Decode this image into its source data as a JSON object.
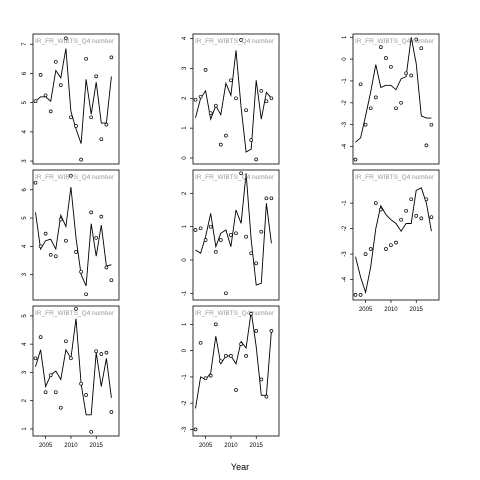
{
  "figure": {
    "xlabel": "Year"
  },
  "chart_data": [
    {
      "type": "line",
      "panel_label": "IR_FR_WIBTS_Q4:number",
      "xlim": [
        2002.5,
        2019.5
      ],
      "ylim": [
        2.9,
        7.35
      ],
      "xticks": [
        2005,
        2010,
        2015
      ],
      "yticks": [
        3,
        4,
        5,
        6,
        7
      ],
      "show_xticks": false,
      "series": [
        {
          "kind": "line",
          "x": [
            2003,
            2004,
            2005,
            2006,
            2007,
            2008,
            2009,
            2010,
            2011,
            2012,
            2013,
            2014,
            2015,
            2016,
            2017,
            2018
          ],
          "y": [
            5.05,
            5.2,
            5.2,
            5.05,
            6.1,
            5.85,
            6.85,
            4.7,
            4.1,
            3.6,
            5.8,
            4.6,
            5.7,
            4.3,
            4.3,
            5.9
          ]
        },
        {
          "kind": "scatter",
          "x": [
            2003,
            2004,
            2005,
            2006,
            2007,
            2008,
            2009,
            2010,
            2011,
            2012,
            2013,
            2014,
            2015,
            2016,
            2017,
            2018
          ],
          "y": [
            5.05,
            5.95,
            5.25,
            4.7,
            6.4,
            5.6,
            7.2,
            4.5,
            4.2,
            3.05,
            6.5,
            4.5,
            5.9,
            3.75,
            4.25,
            6.55
          ]
        }
      ]
    },
    {
      "type": "line",
      "panel_label": "IR_FR_WIBTS_Q4:number",
      "xlim": [
        2002.5,
        2019.5
      ],
      "ylim": [
        -0.2,
        4.15
      ],
      "xticks": [
        2005,
        2010,
        2015
      ],
      "yticks": [
        0,
        1,
        2,
        3,
        4
      ],
      "show_xticks": false,
      "series": [
        {
          "kind": "line",
          "x": [
            2003,
            2004,
            2005,
            2006,
            2007,
            2008,
            2009,
            2010,
            2011,
            2012,
            2013,
            2014,
            2015,
            2016,
            2017,
            2018
          ],
          "y": [
            1.35,
            2.0,
            2.25,
            1.3,
            1.75,
            1.45,
            2.5,
            2.1,
            3.6,
            1.7,
            0.2,
            0.3,
            2.6,
            1.3,
            2.2,
            2.0
          ]
        },
        {
          "kind": "scatter",
          "x": [
            2003,
            2004,
            2005,
            2006,
            2007,
            2008,
            2009,
            2010,
            2011,
            2012,
            2013,
            2014,
            2015,
            2016,
            2017,
            2018
          ],
          "y": [
            1.95,
            2.05,
            2.95,
            1.5,
            1.75,
            0.45,
            0.75,
            2.6,
            2.0,
            3.95,
            1.6,
            0.6,
            -0.05,
            2.25,
            1.9,
            2.0
          ]
        }
      ]
    },
    {
      "type": "line",
      "panel_label": "IR_FR_WIBTS_Q4:number",
      "xlim": [
        2002.5,
        2019.5
      ],
      "ylim": [
        -4.8,
        1.15
      ],
      "xticks": [
        2005,
        2010,
        2015
      ],
      "yticks": [
        -4,
        -3,
        -2,
        -1,
        0,
        1
      ],
      "show_xticks": false,
      "series": [
        {
          "kind": "line",
          "x": [
            2003,
            2004,
            2005,
            2006,
            2007,
            2008,
            2009,
            2010,
            2011,
            2012,
            2013,
            2014,
            2015,
            2016,
            2017,
            2018
          ],
          "y": [
            -3.8,
            -3.6,
            -2.6,
            -1.5,
            -0.25,
            -1.3,
            -1.2,
            -1.2,
            -1.4,
            -0.9,
            -0.8,
            1.0,
            -0.2,
            -2.6,
            -2.7,
            -2.7
          ]
        },
        {
          "kind": "scatter",
          "x": [
            2003,
            2004,
            2005,
            2006,
            2007,
            2008,
            2009,
            2010,
            2011,
            2012,
            2013,
            2014,
            2015,
            2016,
            2017,
            2018
          ],
          "y": [
            -4.6,
            -1.15,
            -3.0,
            -2.25,
            -1.75,
            0.55,
            0.05,
            -0.35,
            -2.25,
            -2.0,
            -0.65,
            -0.75,
            0.9,
            0.5,
            -3.95,
            -3.0
          ]
        }
      ]
    },
    {
      "type": "line",
      "panel_label": "IR_FR_WIBTS_Q4:number",
      "xlim": [
        2002.5,
        2019.5
      ],
      "ylim": [
        2.1,
        6.7
      ],
      "xticks": [
        2005,
        2010,
        2015
      ],
      "yticks": [
        3,
        4,
        5,
        6
      ],
      "show_xticks": false,
      "series": [
        {
          "kind": "line",
          "x": [
            2003,
            2004,
            2005,
            2006,
            2007,
            2008,
            2009,
            2010,
            2011,
            2012,
            2013,
            2014,
            2015,
            2016,
            2017,
            2018
          ],
          "y": [
            5.2,
            3.9,
            4.2,
            4.25,
            3.9,
            5.1,
            4.7,
            6.1,
            4.3,
            3.0,
            2.6,
            4.8,
            3.65,
            4.75,
            3.3,
            3.35
          ]
        },
        {
          "kind": "scatter",
          "x": [
            2003,
            2004,
            2005,
            2006,
            2007,
            2008,
            2009,
            2010,
            2011,
            2012,
            2013,
            2014,
            2015,
            2016,
            2017,
            2018
          ],
          "y": [
            6.25,
            4.0,
            4.45,
            3.7,
            3.65,
            4.95,
            4.2,
            6.5,
            3.8,
            3.1,
            2.3,
            5.2,
            4.3,
            5.05,
            3.25,
            2.8
          ]
        }
      ]
    },
    {
      "type": "line",
      "panel_label": "IR_FR_WIBTS_Q4:number",
      "xlim": [
        2002.5,
        2019.5
      ],
      "ylim": [
        -1.2,
        2.7
      ],
      "xticks": [
        2005,
        2010,
        2015
      ],
      "yticks": [
        -1,
        0,
        1,
        2
      ],
      "show_xticks": false,
      "series": [
        {
          "kind": "line",
          "x": [
            2003,
            2004,
            2005,
            2006,
            2007,
            2008,
            2009,
            2010,
            2011,
            2012,
            2013,
            2014,
            2015,
            2016,
            2017,
            2018
          ],
          "y": [
            0.3,
            0.2,
            0.7,
            1.4,
            0.4,
            0.8,
            0.9,
            0.4,
            1.5,
            1.1,
            2.6,
            0.6,
            -0.75,
            -0.7,
            1.7,
            0.5
          ]
        },
        {
          "kind": "scatter",
          "x": [
            2003,
            2004,
            2005,
            2006,
            2007,
            2008,
            2009,
            2010,
            2011,
            2012,
            2013,
            2014,
            2015,
            2016,
            2017,
            2018
          ],
          "y": [
            0.9,
            0.95,
            0.6,
            1.0,
            0.25,
            0.6,
            -1.0,
            0.75,
            0.8,
            2.6,
            0.7,
            0.2,
            -0.1,
            0.85,
            1.85,
            1.85
          ]
        }
      ]
    },
    {
      "type": "line",
      "panel_label": "IR_FR_WIBTS_Q4:number",
      "xlim": [
        2002.5,
        2019.5
      ],
      "ylim": [
        -4.8,
        0.3
      ],
      "xticks": [
        2005,
        2010,
        2015
      ],
      "yticks": [
        -4,
        -3,
        -2,
        -1
      ],
      "show_xticks": true,
      "series": [
        {
          "kind": "line",
          "x": [
            2003,
            2004,
            2005,
            2006,
            2007,
            2008,
            2009,
            2010,
            2011,
            2012,
            2013,
            2014,
            2015,
            2016,
            2017,
            2018
          ],
          "y": [
            -3.1,
            -3.9,
            -4.5,
            -3.5,
            -2.0,
            -1.1,
            -1.45,
            -1.65,
            -1.8,
            -2.1,
            -1.8,
            -1.8,
            -0.5,
            -0.4,
            -1.0,
            -2.1
          ]
        },
        {
          "kind": "scatter",
          "x": [
            2003,
            2004,
            2005,
            2006,
            2007,
            2008,
            2009,
            2010,
            2011,
            2012,
            2013,
            2014,
            2015,
            2016,
            2017,
            2018
          ],
          "y": [
            -4.6,
            -4.6,
            -3.0,
            -2.8,
            -1.0,
            -1.25,
            -2.8,
            -2.65,
            -2.55,
            -1.65,
            -1.3,
            -0.85,
            -1.5,
            -1.6,
            -0.85,
            -1.55
          ]
        }
      ]
    },
    {
      "type": "line",
      "panel_label": "IR_FR_WIBTS_Q4:number",
      "xlim": [
        2002.5,
        2019.5
      ],
      "ylim": [
        0.75,
        5.35
      ],
      "xticks": [
        2005,
        2010,
        2015
      ],
      "yticks": [
        1,
        2,
        3,
        4,
        5
      ],
      "show_xticks": true,
      "series": [
        {
          "kind": "line",
          "x": [
            2003,
            2004,
            2005,
            2006,
            2007,
            2008,
            2009,
            2010,
            2011,
            2012,
            2013,
            2014,
            2015,
            2016,
            2017,
            2018
          ],
          "y": [
            3.2,
            3.8,
            2.5,
            2.9,
            3.05,
            2.75,
            3.8,
            3.5,
            4.9,
            2.6,
            1.5,
            1.5,
            3.7,
            2.5,
            3.5,
            2.1
          ]
        },
        {
          "kind": "scatter",
          "x": [
            2003,
            2004,
            2005,
            2006,
            2007,
            2008,
            2009,
            2010,
            2011,
            2012,
            2013,
            2014,
            2015,
            2016,
            2017,
            2018
          ],
          "y": [
            3.5,
            4.25,
            2.3,
            2.9,
            2.3,
            1.75,
            4.1,
            3.5,
            5.25,
            2.6,
            2.2,
            0.9,
            3.75,
            3.65,
            3.7,
            1.6
          ]
        }
      ]
    },
    {
      "type": "line",
      "panel_label": "IR_FR_WIBTS_Q4:number",
      "xlim": [
        2002.5,
        2019.5
      ],
      "ylim": [
        -3.25,
        1.7
      ],
      "xticks": [
        2005,
        2010,
        2015
      ],
      "yticks": [
        -3,
        -2,
        -1,
        0,
        1
      ],
      "show_xticks": true,
      "series": [
        {
          "kind": "line",
          "x": [
            2003,
            2004,
            2005,
            2006,
            2007,
            2008,
            2009,
            2010,
            2011,
            2012,
            2013,
            2014,
            2015,
            2016,
            2017,
            2018
          ],
          "y": [
            -2.2,
            -1.0,
            -1.1,
            -0.85,
            0.55,
            -0.5,
            -0.2,
            -0.2,
            -0.5,
            0.35,
            0.1,
            1.5,
            0.15,
            -1.7,
            -1.7,
            0.75
          ]
        },
        {
          "kind": "scatter",
          "x": [
            2003,
            2004,
            2005,
            2006,
            2007,
            2008,
            2009,
            2010,
            2011,
            2012,
            2013,
            2014,
            2015,
            2016,
            2017,
            2018
          ],
          "y": [
            -3.0,
            0.3,
            -1.05,
            -0.95,
            1.0,
            -0.4,
            -0.2,
            -0.2,
            -1.5,
            0.25,
            -0.2,
            1.4,
            0.75,
            -1.1,
            -1.75,
            0.75
          ]
        }
      ]
    }
  ]
}
